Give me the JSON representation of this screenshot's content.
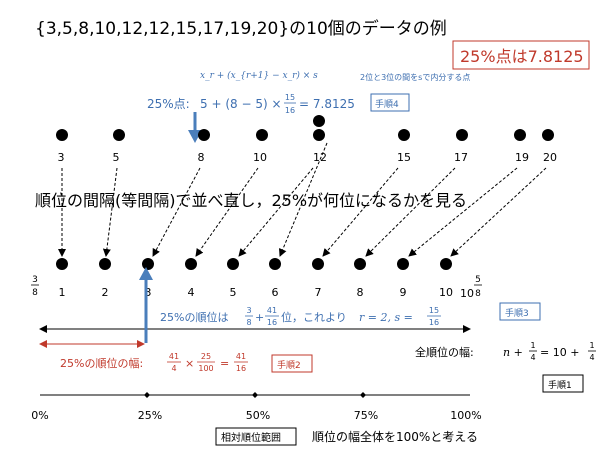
{
  "title": "{3,5,8,10,12,12,15,17,19,20}の10個のデータの例",
  "result_box": "25%点は7.8125",
  "interp": {
    "formula_top": "x_r + (x_{r+1} − x_r) × s",
    "note": "2位と3位の間をsで内分する点",
    "label": "25%点:",
    "expr_left": "5 + (8 − 5) ×",
    "frac_num": "15",
    "frac_den": "16",
    "expr_right": "= 7.8125"
  },
  "step_labels": {
    "step1": "手順1",
    "step2": "手順2",
    "step3": "手順3",
    "step4": "手順4"
  },
  "data_values": [
    "3",
    "5",
    "8",
    "10",
    "12",
    "12",
    "15",
    "17",
    "19",
    "20"
  ],
  "middle_text": "順位の間隔(等間隔)で並べ直し，25%が何位になるかを見る",
  "ranks": [
    "1",
    "2",
    "3",
    "4",
    "5",
    "6",
    "7",
    "8",
    "9",
    "10"
  ],
  "rank_left": {
    "num": "3",
    "den": "8"
  },
  "rank_right": {
    "whole": "10",
    "num": "5",
    "den": "8"
  },
  "rank25": {
    "prefix": "25%の順位は",
    "f1_num": "3",
    "f1_den": "8",
    "plus": "+",
    "f2_num": "41",
    "f2_den": "16",
    "suffix": "位，これより",
    "result": "r = 2, s =",
    "s_num": "15",
    "s_den": "16"
  },
  "width25": {
    "label": "25%の順位の幅:",
    "a_num": "41",
    "a_den": "4",
    "times": "×",
    "b_num": "25",
    "b_den": "100",
    "eq": "=",
    "c_num": "41",
    "c_den": "16"
  },
  "total": {
    "label": "全順位の幅:",
    "expr1": "n +",
    "f_num": "1",
    "f_den": "4",
    "expr2": "= 10 +",
    "g_num": "1",
    "g_den": "4"
  },
  "percent_ticks": [
    "0%",
    "25%",
    "50%",
    "75%",
    "100%"
  ],
  "rel_box": "相対順位範囲",
  "bottom_note": "順位の幅全体を100%と考える",
  "colors": {
    "blue": "#3e6fb0",
    "red": "#c0392b",
    "black": "#000000",
    "arrow_blue": "#4a7ebb"
  }
}
